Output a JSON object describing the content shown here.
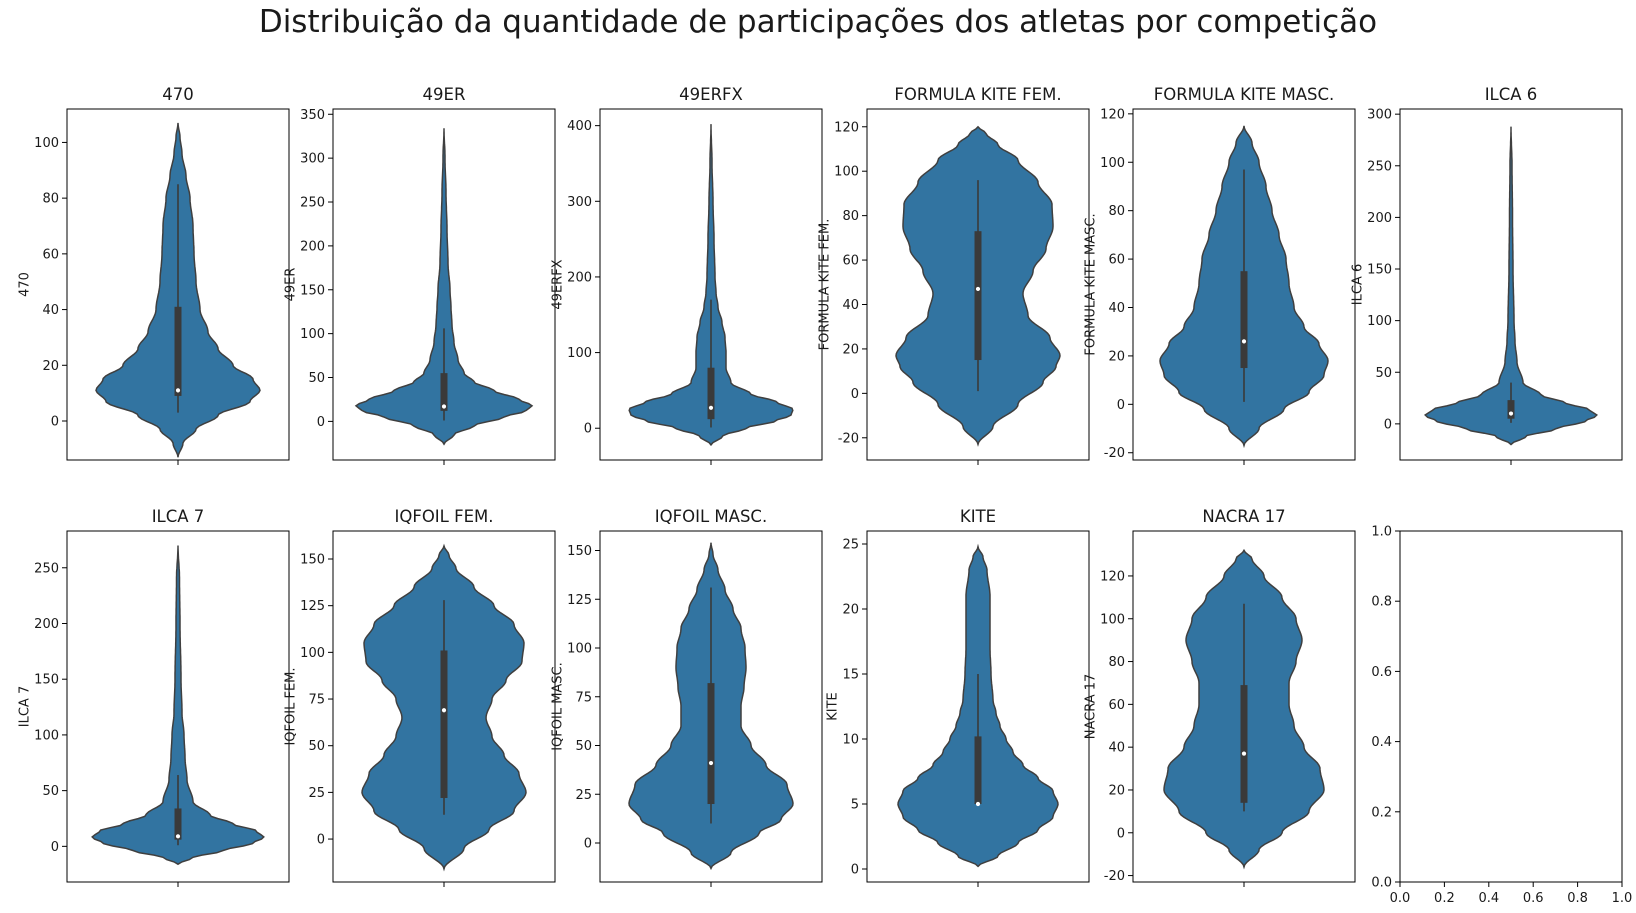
{
  "title": "Distribuição da quantidade de participações dos atletas por competição",
  "colors": {
    "violin": "#3274a1",
    "stroke": "#3f3f3f",
    "box": "#3a3a3a",
    "median": "#ffffff"
  },
  "chart_data": [
    {
      "type": "violin",
      "title": "470",
      "ylabel": "470",
      "ylim": [
        -14,
        112
      ],
      "yticks": [
        0,
        20,
        40,
        60,
        80,
        100
      ],
      "stats": {
        "q1": 9,
        "median": 11,
        "q3": 41,
        "whisker_low": 3,
        "whisker_high": 85
      },
      "profile": [
        [
          -13,
          0
        ],
        [
          -8,
          0.05
        ],
        [
          -3,
          0.18
        ],
        [
          2,
          0.4
        ],
        [
          7,
          0.72
        ],
        [
          11,
          0.82
        ],
        [
          15,
          0.75
        ],
        [
          20,
          0.55
        ],
        [
          26,
          0.4
        ],
        [
          32,
          0.3
        ],
        [
          40,
          0.22
        ],
        [
          50,
          0.18
        ],
        [
          60,
          0.16
        ],
        [
          70,
          0.15
        ],
        [
          80,
          0.12
        ],
        [
          88,
          0.08
        ],
        [
          96,
          0.04
        ],
        [
          102,
          0.02
        ],
        [
          107,
          0
        ]
      ]
    },
    {
      "type": "violin",
      "title": "49ER",
      "ylabel": "49ER",
      "ylim": [
        -44,
        356
      ],
      "yticks": [
        0,
        50,
        100,
        150,
        200,
        250,
        300,
        350
      ],
      "stats": {
        "q1": 12,
        "median": 17,
        "q3": 55,
        "whisker_low": 1,
        "whisker_high": 106
      },
      "profile": [
        [
          -26,
          0
        ],
        [
          -15,
          0.1
        ],
        [
          -5,
          0.3
        ],
        [
          5,
          0.6
        ],
        [
          12,
          0.82
        ],
        [
          18,
          0.88
        ],
        [
          25,
          0.75
        ],
        [
          35,
          0.5
        ],
        [
          45,
          0.3
        ],
        [
          55,
          0.2
        ],
        [
          70,
          0.14
        ],
        [
          90,
          0.1
        ],
        [
          110,
          0.08
        ],
        [
          130,
          0.07
        ],
        [
          150,
          0.06
        ],
        [
          180,
          0.04
        ],
        [
          220,
          0.03
        ],
        [
          260,
          0.02
        ],
        [
          300,
          0.01
        ],
        [
          334,
          0
        ]
      ]
    },
    {
      "type": "violin",
      "title": "49ERFX",
      "ylabel": "49ERFX",
      "ylim": [
        -42,
        422
      ],
      "yticks": [
        0,
        100,
        200,
        300,
        400
      ],
      "stats": {
        "q1": 12,
        "median": 27,
        "q3": 80,
        "whisker_low": 1,
        "whisker_high": 170
      },
      "profile": [
        [
          -22,
          0
        ],
        [
          -10,
          0.12
        ],
        [
          0,
          0.35
        ],
        [
          10,
          0.65
        ],
        [
          17,
          0.8
        ],
        [
          25,
          0.82
        ],
        [
          35,
          0.65
        ],
        [
          45,
          0.4
        ],
        [
          60,
          0.2
        ],
        [
          80,
          0.15
        ],
        [
          100,
          0.15
        ],
        [
          120,
          0.14
        ],
        [
          140,
          0.11
        ],
        [
          160,
          0.07
        ],
        [
          180,
          0.05
        ],
        [
          200,
          0.04
        ],
        [
          250,
          0.03
        ],
        [
          300,
          0.02
        ],
        [
          350,
          0.01
        ],
        [
          402,
          0
        ]
      ]
    },
    {
      "type": "violin",
      "title": "FORMULA KITE FEM.",
      "ylabel": "FORMULA KITE FEM.",
      "ylim": [
        -30,
        128
      ],
      "yticks": [
        -20,
        0,
        20,
        40,
        60,
        80,
        100,
        120
      ],
      "stats": {
        "q1": 15,
        "median": 47,
        "q3": 73,
        "whisker_low": 1,
        "whisker_high": 96
      },
      "profile": [
        [
          -23,
          0
        ],
        [
          -15,
          0.15
        ],
        [
          -5,
          0.4
        ],
        [
          5,
          0.65
        ],
        [
          12,
          0.78
        ],
        [
          17,
          0.82
        ],
        [
          25,
          0.72
        ],
        [
          35,
          0.5
        ],
        [
          45,
          0.45
        ],
        [
          55,
          0.55
        ],
        [
          65,
          0.68
        ],
        [
          75,
          0.75
        ],
        [
          85,
          0.74
        ],
        [
          95,
          0.6
        ],
        [
          105,
          0.4
        ],
        [
          112,
          0.2
        ],
        [
          117,
          0.08
        ],
        [
          120,
          0
        ]
      ]
    },
    {
      "type": "violin",
      "title": "FORMULA KITE MASC.",
      "ylabel": "FORMULA KITE MASC.",
      "ylim": [
        -23,
        122
      ],
      "yticks": [
        -20,
        0,
        20,
        40,
        60,
        80,
        100,
        120
      ],
      "stats": {
        "q1": 15,
        "median": 26,
        "q3": 55,
        "whisker_low": 1,
        "whisker_high": 97
      },
      "profile": [
        [
          -17,
          0
        ],
        [
          -10,
          0.15
        ],
        [
          -2,
          0.4
        ],
        [
          5,
          0.65
        ],
        [
          12,
          0.8
        ],
        [
          18,
          0.84
        ],
        [
          25,
          0.75
        ],
        [
          32,
          0.6
        ],
        [
          40,
          0.5
        ],
        [
          50,
          0.45
        ],
        [
          60,
          0.42
        ],
        [
          70,
          0.35
        ],
        [
          80,
          0.28
        ],
        [
          90,
          0.22
        ],
        [
          100,
          0.15
        ],
        [
          108,
          0.08
        ],
        [
          115,
          0
        ]
      ]
    },
    {
      "type": "violin",
      "title": "ILCA 6",
      "ylabel": "ILCA 6",
      "ylim": [
        -35,
        305
      ],
      "yticks": [
        0,
        50,
        100,
        150,
        200,
        250,
        300
      ],
      "stats": {
        "q1": 5,
        "median": 10,
        "q3": 23,
        "whisker_low": 1,
        "whisker_high": 40
      },
      "profile": [
        [
          -20,
          0
        ],
        [
          -12,
          0.15
        ],
        [
          -5,
          0.45
        ],
        [
          3,
          0.75
        ],
        [
          8,
          0.86
        ],
        [
          14,
          0.78
        ],
        [
          20,
          0.55
        ],
        [
          28,
          0.3
        ],
        [
          40,
          0.12
        ],
        [
          60,
          0.06
        ],
        [
          80,
          0.04
        ],
        [
          100,
          0.03
        ],
        [
          150,
          0.02
        ],
        [
          200,
          0.015
        ],
        [
          250,
          0.01
        ],
        [
          288,
          0
        ]
      ]
    },
    {
      "type": "violin",
      "title": "ILCA 7",
      "ylabel": "ILCA 7",
      "ylim": [
        -32,
        283
      ],
      "yticks": [
        0,
        50,
        100,
        150,
        200,
        250
      ],
      "stats": {
        "q1": 6,
        "median": 9,
        "q3": 34,
        "whisker_low": 1,
        "whisker_high": 64
      },
      "profile": [
        [
          -16,
          0
        ],
        [
          -10,
          0.15
        ],
        [
          -4,
          0.45
        ],
        [
          3,
          0.75
        ],
        [
          8,
          0.86
        ],
        [
          14,
          0.78
        ],
        [
          20,
          0.55
        ],
        [
          28,
          0.32
        ],
        [
          40,
          0.15
        ],
        [
          60,
          0.09
        ],
        [
          80,
          0.07
        ],
        [
          100,
          0.06
        ],
        [
          120,
          0.04
        ],
        [
          150,
          0.03
        ],
        [
          200,
          0.02
        ],
        [
          240,
          0.015
        ],
        [
          270,
          0
        ]
      ]
    },
    {
      "type": "violin",
      "title": "IQFOIL FEM.",
      "ylabel": "IQFOIL FEM.",
      "ylim": [
        -23,
        165
      ],
      "yticks": [
        0,
        25,
        50,
        75,
        100,
        125,
        150
      ],
      "stats": {
        "q1": 22,
        "median": 69,
        "q3": 101,
        "whisker_low": 13,
        "whisker_high": 128
      },
      "profile": [
        [
          -16,
          0
        ],
        [
          -5,
          0.2
        ],
        [
          5,
          0.45
        ],
        [
          15,
          0.7
        ],
        [
          25,
          0.82
        ],
        [
          35,
          0.75
        ],
        [
          45,
          0.6
        ],
        [
          55,
          0.48
        ],
        [
          65,
          0.42
        ],
        [
          75,
          0.48
        ],
        [
          85,
          0.62
        ],
        [
          95,
          0.78
        ],
        [
          105,
          0.8
        ],
        [
          115,
          0.7
        ],
        [
          125,
          0.5
        ],
        [
          135,
          0.3
        ],
        [
          145,
          0.12
        ],
        [
          152,
          0.05
        ],
        [
          157,
          0
        ]
      ]
    },
    {
      "type": "violin",
      "title": "IQFOIL MASC.",
      "ylabel": "IQFOIL MASC.",
      "ylim": [
        -20,
        160
      ],
      "yticks": [
        0,
        25,
        50,
        75,
        100,
        125,
        150
      ],
      "stats": {
        "q1": 20,
        "median": 41,
        "q3": 82,
        "whisker_low": 10,
        "whisker_high": 131
      },
      "profile": [
        [
          -13,
          0
        ],
        [
          -5,
          0.2
        ],
        [
          5,
          0.48
        ],
        [
          12,
          0.7
        ],
        [
          20,
          0.82
        ],
        [
          30,
          0.76
        ],
        [
          40,
          0.55
        ],
        [
          50,
          0.4
        ],
        [
          60,
          0.3
        ],
        [
          70,
          0.3
        ],
        [
          80,
          0.33
        ],
        [
          90,
          0.35
        ],
        [
          100,
          0.34
        ],
        [
          110,
          0.3
        ],
        [
          120,
          0.22
        ],
        [
          130,
          0.14
        ],
        [
          140,
          0.07
        ],
        [
          148,
          0.02
        ],
        [
          154,
          0
        ]
      ]
    },
    {
      "type": "violin",
      "title": "KITE",
      "ylabel": "KITE",
      "ylim": [
        -1,
        26
      ],
      "yticks": [
        0,
        5,
        10,
        15,
        20,
        25
      ],
      "stats": {
        "q1": 5,
        "median": 5,
        "q3": 10.2,
        "whisker_low": 5,
        "whisker_high": 15
      },
      "profile": [
        [
          0.2,
          0
        ],
        [
          1,
          0.2
        ],
        [
          2,
          0.4
        ],
        [
          3,
          0.6
        ],
        [
          4,
          0.75
        ],
        [
          5,
          0.8
        ],
        [
          6,
          0.75
        ],
        [
          7,
          0.6
        ],
        [
          8,
          0.45
        ],
        [
          9,
          0.35
        ],
        [
          10,
          0.28
        ],
        [
          11,
          0.22
        ],
        [
          12,
          0.18
        ],
        [
          13,
          0.15
        ],
        [
          15,
          0.13
        ],
        [
          17,
          0.12
        ],
        [
          19,
          0.12
        ],
        [
          21,
          0.12
        ],
        [
          23,
          0.09
        ],
        [
          24,
          0.05
        ],
        [
          24.8,
          0
        ]
      ]
    },
    {
      "type": "violin",
      "title": "NACRA 17",
      "ylabel": "NACRA 17",
      "ylim": [
        -23,
        141
      ],
      "yticks": [
        -20,
        0,
        20,
        40,
        60,
        80,
        100,
        120
      ],
      "stats": {
        "q1": 14,
        "median": 37,
        "q3": 69,
        "whisker_low": 10,
        "whisker_high": 107
      },
      "profile": [
        [
          -16,
          0
        ],
        [
          -8,
          0.15
        ],
        [
          0,
          0.38
        ],
        [
          10,
          0.65
        ],
        [
          20,
          0.8
        ],
        [
          30,
          0.76
        ],
        [
          40,
          0.6
        ],
        [
          50,
          0.5
        ],
        [
          60,
          0.45
        ],
        [
          70,
          0.45
        ],
        [
          80,
          0.52
        ],
        [
          90,
          0.58
        ],
        [
          100,
          0.52
        ],
        [
          110,
          0.38
        ],
        [
          120,
          0.2
        ],
        [
          128,
          0.08
        ],
        [
          132,
          0
        ]
      ]
    },
    {
      "type": "empty",
      "title": "",
      "ylabel": "",
      "xlim": [
        0,
        1
      ],
      "ylim": [
        0,
        1
      ],
      "xticks": [
        "0.0",
        "0.2",
        "0.4",
        "0.6",
        "0.8",
        "1.0"
      ],
      "yticks": [
        "0.0",
        "0.2",
        "0.4",
        "0.6",
        "0.8",
        "1.0"
      ]
    }
  ]
}
